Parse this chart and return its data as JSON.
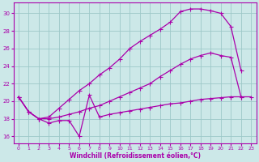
{
  "xlabel": "Windchill (Refroidissement éolien,°C)",
  "bg_color": "#cce8e8",
  "grid_color": "#9dc8c8",
  "line_color": "#aa00aa",
  "xlim": [
    -0.5,
    23.5
  ],
  "ylim": [
    15.2,
    31.2
  ],
  "yticks": [
    16,
    18,
    20,
    22,
    24,
    26,
    28,
    30
  ],
  "xticks": [
    0,
    1,
    2,
    3,
    4,
    5,
    6,
    7,
    8,
    9,
    10,
    11,
    12,
    13,
    14,
    15,
    16,
    17,
    18,
    19,
    20,
    21,
    22,
    23
  ],
  "line_top_x": [
    0,
    1,
    2,
    3,
    4,
    5,
    6,
    7,
    8,
    9,
    10,
    11,
    12,
    13,
    14,
    15,
    16,
    17,
    18,
    19,
    20,
    21,
    22
  ],
  "line_top_y": [
    20.5,
    18.8,
    18.0,
    18.2,
    19.2,
    20.2,
    21.2,
    22.0,
    23.0,
    23.8,
    24.8,
    26.0,
    26.8,
    27.5,
    28.2,
    29.0,
    30.2,
    30.5,
    30.5,
    30.3,
    30.0,
    28.5,
    23.5
  ],
  "line_mid_x": [
    0,
    1,
    2,
    3,
    4,
    5,
    6,
    7,
    8,
    9,
    10,
    11,
    12,
    13,
    14,
    15,
    16,
    17,
    18,
    19,
    20,
    21,
    22
  ],
  "line_mid_y": [
    20.5,
    18.8,
    18.0,
    18.0,
    18.2,
    18.5,
    18.8,
    19.2,
    19.5,
    20.0,
    20.5,
    21.0,
    21.5,
    22.0,
    22.8,
    23.5,
    24.2,
    24.8,
    25.2,
    25.5,
    25.2,
    25.0,
    20.5
  ],
  "line_bot_x": [
    0,
    1,
    2,
    3,
    4,
    5,
    6,
    7,
    8,
    9,
    10,
    11,
    12,
    13,
    14,
    15,
    16,
    17,
    18,
    19,
    20,
    21,
    22,
    23
  ],
  "line_bot_y": [
    20.5,
    18.8,
    18.0,
    17.5,
    17.8,
    17.8,
    16.0,
    20.7,
    18.2,
    18.5,
    18.7,
    18.9,
    19.1,
    19.3,
    19.5,
    19.7,
    19.8,
    20.0,
    20.2,
    20.3,
    20.4,
    20.5,
    20.5,
    20.5
  ]
}
